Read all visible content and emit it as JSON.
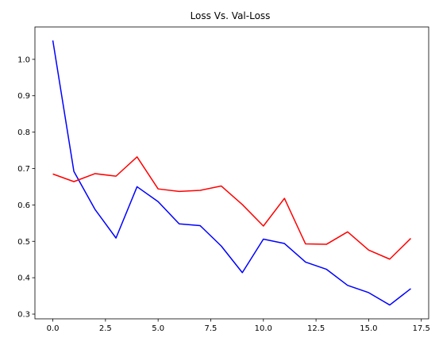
{
  "chart_data": {
    "type": "line",
    "title": "Loss Vs. Val-Loss",
    "xlabel": "",
    "ylabel": "",
    "x": [
      0,
      1,
      2,
      3,
      4,
      5,
      6,
      7,
      8,
      9,
      10,
      11,
      12,
      13,
      14,
      15,
      16,
      17
    ],
    "xlim": [
      -0.85,
      17.85
    ],
    "ylim": [
      0.287,
      1.089
    ],
    "xticks": [
      "0.0",
      "2.5",
      "5.0",
      "7.5",
      "10.0",
      "12.5",
      "15.0",
      "17.5"
    ],
    "yticks": [
      "0.3",
      "0.4",
      "0.5",
      "0.6",
      "0.7",
      "0.8",
      "0.9",
      "1.0"
    ],
    "grid": false,
    "series": [
      {
        "color": "#0000ff",
        "values": [
          1.052,
          0.692,
          0.588,
          0.509,
          0.65,
          0.609,
          0.548,
          0.543,
          0.487,
          0.414,
          0.506,
          0.494,
          0.443,
          0.423,
          0.379,
          0.359,
          0.325,
          0.37
        ]
      },
      {
        "color": "#ff0000",
        "values": [
          0.685,
          0.664,
          0.686,
          0.679,
          0.732,
          0.644,
          0.637,
          0.64,
          0.652,
          0.601,
          0.542,
          0.618,
          0.493,
          0.492,
          0.526,
          0.476,
          0.451,
          0.508
        ]
      }
    ]
  }
}
